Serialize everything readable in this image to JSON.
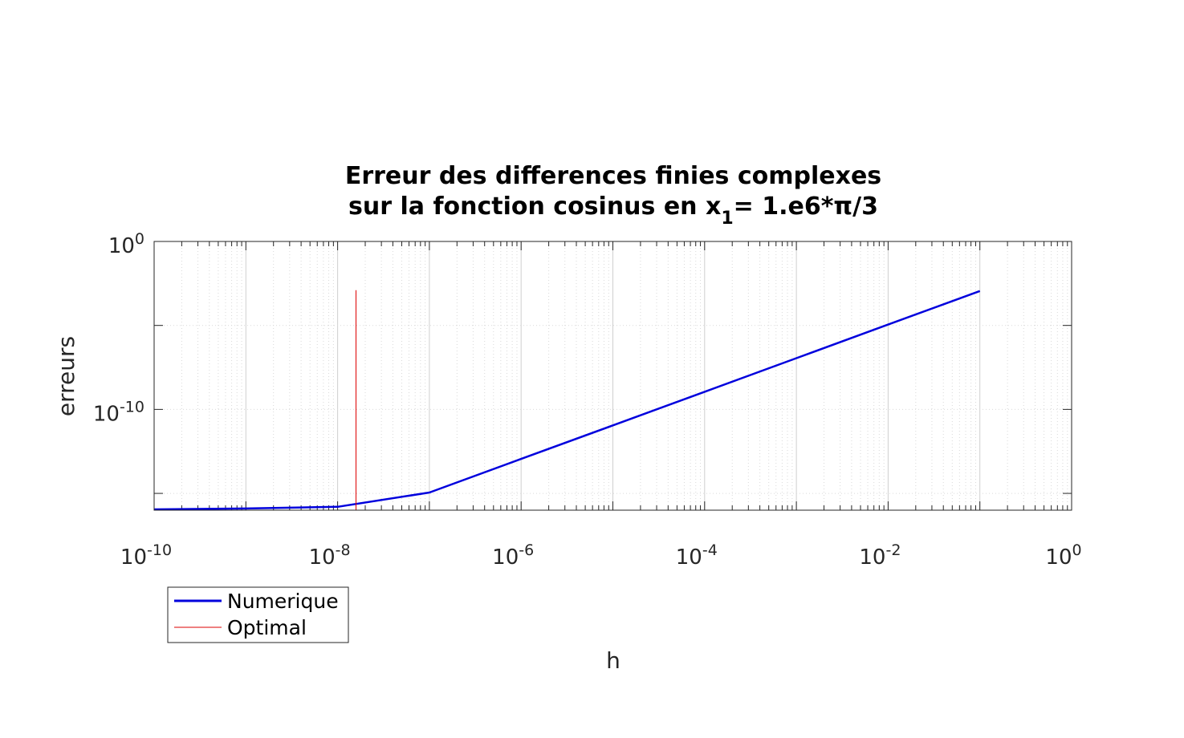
{
  "chart_data": {
    "type": "line",
    "title_line1": "Erreur des differences finies complexes",
    "title_line2_prefix": "sur la fonction cosinus en x",
    "title_line2_sub": "1",
    "title_line2_suffix": "= 1.e6*π/3",
    "xlabel": "h",
    "ylabel": "erreurs",
    "xscale": "log",
    "yscale": "log",
    "xlim_exp": [
      -10,
      0
    ],
    "ylim_exp": [
      -16,
      0
    ],
    "grid": true,
    "minor_grid": true,
    "x_ticks": [
      {
        "base": "10",
        "exp": "-10",
        "value_exp": -10
      },
      {
        "base": "10",
        "exp": "-8",
        "value_exp": -8
      },
      {
        "base": "10",
        "exp": "-6",
        "value_exp": -6
      },
      {
        "base": "10",
        "exp": "-4",
        "value_exp": -4
      },
      {
        "base": "10",
        "exp": "-2",
        "value_exp": -2
      },
      {
        "base": "10",
        "exp": "0",
        "value_exp": 0
      }
    ],
    "y_ticks": [
      {
        "base": "10",
        "exp": "0",
        "value_exp": 0
      },
      {
        "base": "10",
        "exp": "-10",
        "value_exp": -10
      }
    ],
    "y_unlabeled_ticks_exp": [
      -5,
      -15
    ],
    "series": [
      {
        "name": "Numerique",
        "color": "#0000dd",
        "x_exp": [
          -10,
          -9,
          -8,
          -7,
          -6,
          -5,
          -4,
          -3,
          -2,
          -1
        ],
        "y_exp": [
          -15.95,
          -15.9,
          -15.8,
          -14.95,
          -12.95,
          -10.95,
          -8.95,
          -6.95,
          -4.95,
          -2.95
        ]
      },
      {
        "name": "Optimal",
        "color": "#dd0000",
        "x_exp": [
          -7.8,
          -7.8
        ],
        "y_exp": [
          -16,
          -2.9
        ]
      }
    ],
    "legend_position": "below-left"
  }
}
